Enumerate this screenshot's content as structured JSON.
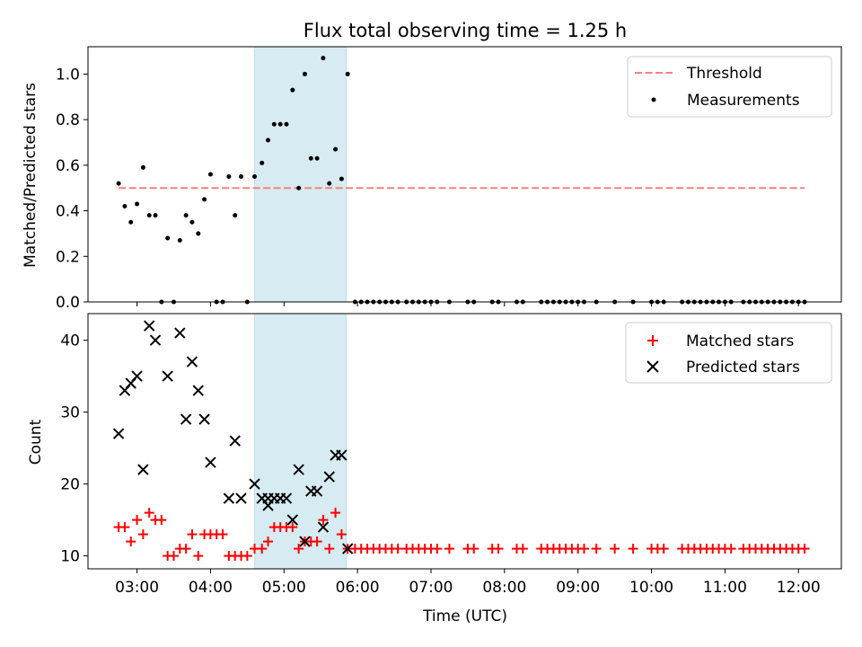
{
  "colors": {
    "threshold": "#ff7f7f",
    "measurement": "#000000",
    "matched": "#ff0000",
    "predicted": "#000000",
    "span": "#add8e6"
  },
  "chart_data": [
    {
      "type": "scatter",
      "title": "Flux total observing time = 1.25 h",
      "xlabel": "",
      "ylabel": "Matched/Predicted stars",
      "xlim": [
        "02:20",
        "12:35"
      ],
      "ylim": [
        0,
        1.12
      ],
      "yticks": [
        "0.0",
        "0.2",
        "0.4",
        "0.6",
        "0.8",
        "1.0"
      ],
      "ytick_values": [
        0,
        0.2,
        0.4,
        0.6,
        0.8,
        1.0
      ],
      "highlight_span": [
        "04:36",
        "05:51"
      ],
      "legend_position": "upper right",
      "series": [
        {
          "name": "Threshold",
          "kind": "dashed-line",
          "points": [
            [
              "02:45",
              0.5
            ],
            [
              "12:05",
              0.5
            ]
          ]
        },
        {
          "name": "Measurements",
          "kind": "dots",
          "points": [
            [
              "02:45",
              0.52
            ],
            [
              "02:50",
              0.42
            ],
            [
              "02:55",
              0.35
            ],
            [
              "03:00",
              0.43
            ],
            [
              "03:05",
              0.59
            ],
            [
              "03:10",
              0.38
            ],
            [
              "03:15",
              0.38
            ],
            [
              "03:20",
              0.0
            ],
            [
              "03:25",
              0.28
            ],
            [
              "03:30",
              0.0
            ],
            [
              "03:35",
              0.27
            ],
            [
              "03:40",
              0.38
            ],
            [
              "03:45",
              0.35
            ],
            [
              "03:50",
              0.3
            ],
            [
              "03:55",
              0.45
            ],
            [
              "04:00",
              0.56
            ],
            [
              "04:05",
              0.0
            ],
            [
              "04:10",
              0.0
            ],
            [
              "04:15",
              0.55
            ],
            [
              "04:20",
              0.38
            ],
            [
              "04:25",
              0.55
            ],
            [
              "04:30",
              0.0
            ],
            [
              "04:36",
              0.55
            ],
            [
              "04:42",
              0.61
            ],
            [
              "04:47",
              0.71
            ],
            [
              "04:52",
              0.78
            ],
            [
              "04:57",
              0.78
            ],
            [
              "05:02",
              0.78
            ],
            [
              "05:07",
              0.93
            ],
            [
              "05:12",
              0.5
            ],
            [
              "05:17",
              1.0
            ],
            [
              "05:22",
              0.63
            ],
            [
              "05:27",
              0.63
            ],
            [
              "05:32",
              1.07
            ],
            [
              "05:37",
              0.52
            ],
            [
              "05:42",
              0.67
            ],
            [
              "05:47",
              0.54
            ],
            [
              "05:52",
              1.0
            ],
            [
              "05:58",
              0.0
            ],
            [
              "06:03",
              0.0
            ],
            [
              "06:08",
              0.0
            ],
            [
              "06:13",
              0.0
            ],
            [
              "06:18",
              0.0
            ],
            [
              "06:23",
              0.0
            ],
            [
              "06:28",
              0.0
            ],
            [
              "06:33",
              0.0
            ],
            [
              "06:40",
              0.0
            ],
            [
              "06:45",
              0.0
            ],
            [
              "06:50",
              0.0
            ],
            [
              "06:55",
              0.0
            ],
            [
              "07:00",
              0.0
            ],
            [
              "07:05",
              0.0
            ],
            [
              "07:15",
              0.0
            ],
            [
              "07:30",
              0.0
            ],
            [
              "07:35",
              0.0
            ],
            [
              "07:50",
              0.0
            ],
            [
              "07:55",
              0.0
            ],
            [
              "08:10",
              0.0
            ],
            [
              "08:15",
              0.0
            ],
            [
              "08:30",
              0.0
            ],
            [
              "08:35",
              0.0
            ],
            [
              "08:40",
              0.0
            ],
            [
              "08:45",
              0.0
            ],
            [
              "08:50",
              0.0
            ],
            [
              "08:55",
              0.0
            ],
            [
              "09:00",
              0.0
            ],
            [
              "09:05",
              0.0
            ],
            [
              "09:15",
              0.0
            ],
            [
              "09:30",
              0.0
            ],
            [
              "09:45",
              0.0
            ],
            [
              "10:00",
              0.0
            ],
            [
              "10:05",
              0.0
            ],
            [
              "10:10",
              0.0
            ],
            [
              "10:25",
              0.0
            ],
            [
              "10:30",
              0.0
            ],
            [
              "10:35",
              0.0
            ],
            [
              "10:40",
              0.0
            ],
            [
              "10:45",
              0.0
            ],
            [
              "10:50",
              0.0
            ],
            [
              "10:55",
              0.0
            ],
            [
              "11:00",
              0.0
            ],
            [
              "11:05",
              0.0
            ],
            [
              "11:15",
              0.0
            ],
            [
              "11:20",
              0.0
            ],
            [
              "11:25",
              0.0
            ],
            [
              "11:30",
              0.0
            ],
            [
              "11:35",
              0.0
            ],
            [
              "11:40",
              0.0
            ],
            [
              "11:45",
              0.0
            ],
            [
              "11:50",
              0.0
            ],
            [
              "11:55",
              0.0
            ],
            [
              "12:00",
              0.0
            ],
            [
              "12:05",
              0.0
            ]
          ]
        }
      ]
    },
    {
      "type": "scatter",
      "title": "",
      "xlabel": "Time (UTC)",
      "ylabel": "Count",
      "xlim": [
        "02:20",
        "12:35"
      ],
      "ylim": [
        8.2,
        43.7
      ],
      "yticks": [
        "10",
        "20",
        "30",
        "40"
      ],
      "ytick_values": [
        10,
        20,
        30,
        40
      ],
      "xticks": [
        "03:00",
        "04:00",
        "05:00",
        "06:00",
        "07:00",
        "08:00",
        "09:00",
        "10:00",
        "11:00",
        "12:00"
      ],
      "highlight_span": [
        "04:36",
        "05:51"
      ],
      "legend_position": "upper right",
      "series": [
        {
          "name": "Matched stars",
          "kind": "plus",
          "points": [
            [
              "02:45",
              14
            ],
            [
              "02:50",
              14
            ],
            [
              "02:55",
              12
            ],
            [
              "03:00",
              15
            ],
            [
              "03:05",
              13
            ],
            [
              "03:10",
              16
            ],
            [
              "03:15",
              15
            ],
            [
              "03:20",
              15
            ],
            [
              "03:25",
              10
            ],
            [
              "03:30",
              10
            ],
            [
              "03:35",
              11
            ],
            [
              "03:40",
              11
            ],
            [
              "03:45",
              13
            ],
            [
              "03:50",
              10
            ],
            [
              "03:55",
              13
            ],
            [
              "04:00",
              13
            ],
            [
              "04:05",
              13
            ],
            [
              "04:10",
              13
            ],
            [
              "04:15",
              10
            ],
            [
              "04:20",
              10
            ],
            [
              "04:25",
              10
            ],
            [
              "04:30",
              10
            ],
            [
              "04:36",
              11
            ],
            [
              "04:42",
              11
            ],
            [
              "04:47",
              12
            ],
            [
              "04:52",
              14
            ],
            [
              "04:57",
              14
            ],
            [
              "05:02",
              14
            ],
            [
              "05:07",
              14
            ],
            [
              "05:12",
              11
            ],
            [
              "05:17",
              12
            ],
            [
              "05:22",
              12
            ],
            [
              "05:27",
              12
            ],
            [
              "05:32",
              15
            ],
            [
              "05:37",
              11
            ],
            [
              "05:42",
              16
            ],
            [
              "05:47",
              13
            ],
            [
              "05:52",
              11
            ],
            [
              "05:58",
              11
            ],
            [
              "06:03",
              11
            ],
            [
              "06:08",
              11
            ],
            [
              "06:13",
              11
            ],
            [
              "06:18",
              11
            ],
            [
              "06:23",
              11
            ],
            [
              "06:28",
              11
            ],
            [
              "06:33",
              11
            ],
            [
              "06:40",
              11
            ],
            [
              "06:45",
              11
            ],
            [
              "06:50",
              11
            ],
            [
              "06:55",
              11
            ],
            [
              "07:00",
              11
            ],
            [
              "07:05",
              11
            ],
            [
              "07:15",
              11
            ],
            [
              "07:30",
              11
            ],
            [
              "07:35",
              11
            ],
            [
              "07:50",
              11
            ],
            [
              "07:55",
              11
            ],
            [
              "08:10",
              11
            ],
            [
              "08:15",
              11
            ],
            [
              "08:30",
              11
            ],
            [
              "08:35",
              11
            ],
            [
              "08:40",
              11
            ],
            [
              "08:45",
              11
            ],
            [
              "08:50",
              11
            ],
            [
              "08:55",
              11
            ],
            [
              "09:00",
              11
            ],
            [
              "09:05",
              11
            ],
            [
              "09:15",
              11
            ],
            [
              "09:30",
              11
            ],
            [
              "09:45",
              11
            ],
            [
              "10:00",
              11
            ],
            [
              "10:05",
              11
            ],
            [
              "10:10",
              11
            ],
            [
              "10:25",
              11
            ],
            [
              "10:30",
              11
            ],
            [
              "10:35",
              11
            ],
            [
              "10:40",
              11
            ],
            [
              "10:45",
              11
            ],
            [
              "10:50",
              11
            ],
            [
              "10:55",
              11
            ],
            [
              "11:00",
              11
            ],
            [
              "11:05",
              11
            ],
            [
              "11:15",
              11
            ],
            [
              "11:20",
              11
            ],
            [
              "11:25",
              11
            ],
            [
              "11:30",
              11
            ],
            [
              "11:35",
              11
            ],
            [
              "11:40",
              11
            ],
            [
              "11:45",
              11
            ],
            [
              "11:50",
              11
            ],
            [
              "11:55",
              11
            ],
            [
              "12:00",
              11
            ],
            [
              "12:05",
              11
            ]
          ]
        },
        {
          "name": "Predicted stars",
          "kind": "x",
          "points": [
            [
              "02:45",
              27
            ],
            [
              "02:50",
              33
            ],
            [
              "02:55",
              34
            ],
            [
              "03:00",
              35
            ],
            [
              "03:05",
              22
            ],
            [
              "03:10",
              42
            ],
            [
              "03:15",
              40
            ],
            [
              "03:25",
              35
            ],
            [
              "03:35",
              41
            ],
            [
              "03:40",
              29
            ],
            [
              "03:45",
              37
            ],
            [
              "03:50",
              33
            ],
            [
              "03:55",
              29
            ],
            [
              "04:00",
              23
            ],
            [
              "04:15",
              18
            ],
            [
              "04:20",
              26
            ],
            [
              "04:25",
              18
            ],
            [
              "04:36",
              20
            ],
            [
              "04:42",
              18
            ],
            [
              "04:47",
              17
            ],
            [
              "04:47",
              18
            ],
            [
              "04:52",
              18
            ],
            [
              "04:57",
              18
            ],
            [
              "05:02",
              18
            ],
            [
              "05:07",
              15
            ],
            [
              "05:12",
              22
            ],
            [
              "05:17",
              12
            ],
            [
              "05:22",
              19
            ],
            [
              "05:27",
              19
            ],
            [
              "05:32",
              14
            ],
            [
              "05:37",
              21
            ],
            [
              "05:42",
              24
            ],
            [
              "05:47",
              24
            ],
            [
              "05:52",
              11
            ]
          ]
        }
      ]
    }
  ]
}
